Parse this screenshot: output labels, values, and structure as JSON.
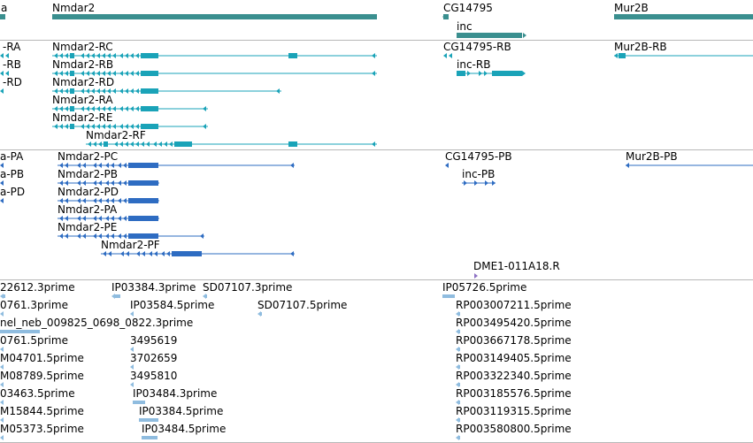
{
  "colors": {
    "gene": "#3a8f8f",
    "flybase_transcript": "#1aa3b8",
    "refseq_transcript": "#2e6cc2",
    "est": "#8fbcdf",
    "oligo": "#8d72c4",
    "divider": "#b8b8b8"
  },
  "genes_track": {
    "labels": {
      "left_gene_fragment": "a",
      "nmdar2": "Nmdar2",
      "cg14795": "CG14795",
      "inc": "inc",
      "mur2b": "Mur2B"
    }
  },
  "flybase_track": {
    "labels": {
      "left_ra": "-RA",
      "left_rb": "-RB",
      "left_rd": "-RD",
      "nmdar2_rc": "Nmdar2-RC",
      "nmdar2_rb": "Nmdar2-RB",
      "nmdar2_rd": "Nmdar2-RD",
      "nmdar2_ra": "Nmdar2-RA",
      "nmdar2_re": "Nmdar2-RE",
      "nmdar2_rf": "Nmdar2-RF",
      "cg14795_rb": "CG14795-RB",
      "inc_rb": "inc-RB",
      "mur2b_rb": "Mur2B-RB"
    }
  },
  "refseq_track": {
    "labels": {
      "left_pa": "a-PA",
      "left_pb": "a-PB",
      "left_pd": "a-PD",
      "nmdar2_pc": "Nmdar2-PC",
      "nmdar2_pb": "Nmdar2-PB",
      "nmdar2_pd": "Nmdar2-PD",
      "nmdar2_pa": "Nmdar2-PA",
      "nmdar2_pe": "Nmdar2-PE",
      "nmdar2_pf": "Nmdar2-PF",
      "cg14795_pb": "CG14795-PB",
      "inc_pb": "inc-PB",
      "mur2b_pb": "Mur2B-PB"
    }
  },
  "oligo_track": {
    "labels": {
      "dme1": "DME1-011A18.R"
    }
  },
  "est_track": {
    "labels": {
      "e1": "22612.3prime",
      "e2": "IP03384.3prime",
      "e3": "SD07107.3prime",
      "e4": "IP05726.5prime",
      "e5": "0761.3prime",
      "e6": "IP03584.5prime",
      "e7": "SD07107.5prime",
      "e8": "RP003007211.5prime",
      "e9": "nel_neb_009825_0698_0822.3prime",
      "e10": "RP003495420.5prime",
      "e11": "0761.5prime",
      "e12": "3495619",
      "e13": "RP003667178.5prime",
      "e14": "M04701.5prime",
      "e15": "3702659",
      "e16": "RP003149405.5prime",
      "e17": "M08789.5prime",
      "e18": "3495810",
      "e19": "RP003322340.5prime",
      "e20": "03463.5prime",
      "e21": "IP03484.3prime",
      "e22": "RP003185576.5prime",
      "e23": "M15844.5prime",
      "e24": "IP03384.5prime",
      "e25": "RP003119315.5prime",
      "e26": "M05373.5prime",
      "e27": "IP03484.5prime",
      "e28": "RP003580800.5prime"
    }
  }
}
